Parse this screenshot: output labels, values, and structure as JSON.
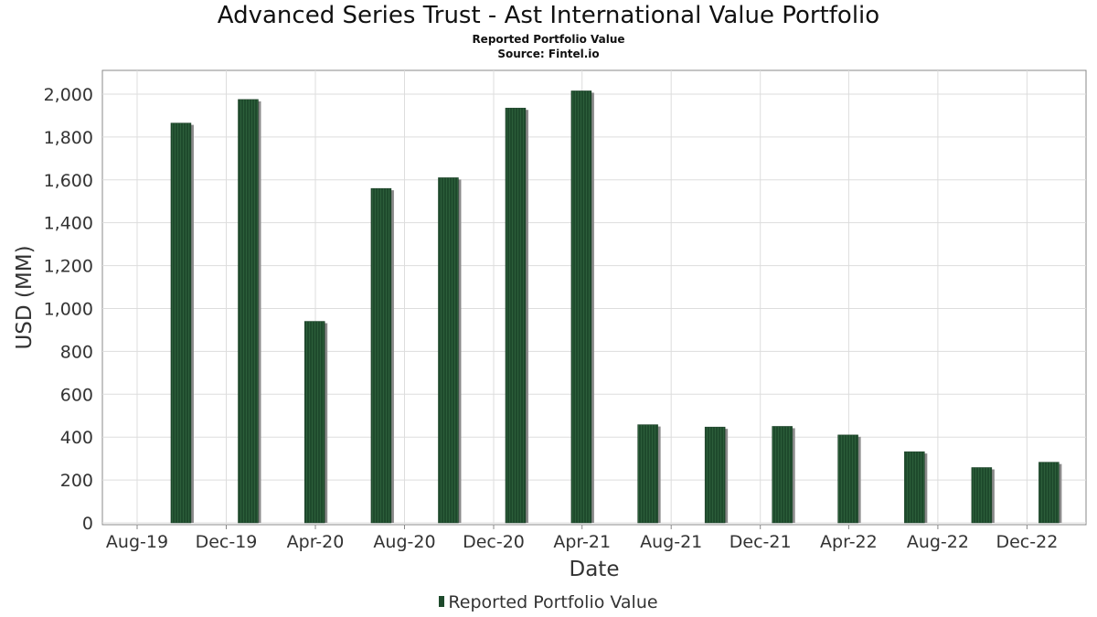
{
  "chart_data": {
    "type": "bar",
    "title": "Advanced Series Trust - Ast International Value Portfolio",
    "subtitles": [
      "Reported Portfolio Value",
      "Source: Fintel.io"
    ],
    "xlabel": "Date",
    "ylabel": "USD (MM)",
    "ylim": [
      0,
      2100
    ],
    "y_ticks": [
      0,
      200,
      400,
      600,
      800,
      1000,
      1200,
      1400,
      1600,
      1800,
      2000
    ],
    "y_tick_labels": [
      "0",
      "200",
      "400",
      "600",
      "800",
      "1,000",
      "1,200",
      "1,400",
      "1,600",
      "1,800",
      "2,000"
    ],
    "x_tick_labels": [
      "Aug-19",
      "Dec-19",
      "Apr-20",
      "Aug-20",
      "Dec-20",
      "Apr-21",
      "Aug-21",
      "Dec-21",
      "Apr-22",
      "Aug-22",
      "Dec-22"
    ],
    "grid": true,
    "legend_position": "bottom",
    "series": [
      {
        "name": "Reported Portfolio Value",
        "color": "#1e4a2c",
        "x": [
          "2019-09-30",
          "2019-12-31",
          "2020-03-31",
          "2020-06-30",
          "2020-09-30",
          "2020-12-31",
          "2021-03-31",
          "2021-06-30",
          "2021-09-30",
          "2021-12-31",
          "2022-03-31",
          "2022-06-30",
          "2022-09-30",
          "2022-12-31"
        ],
        "values": [
          1865,
          1975,
          940,
          1560,
          1610,
          1935,
          2015,
          458,
          447,
          450,
          410,
          332,
          258,
          283
        ]
      }
    ]
  }
}
